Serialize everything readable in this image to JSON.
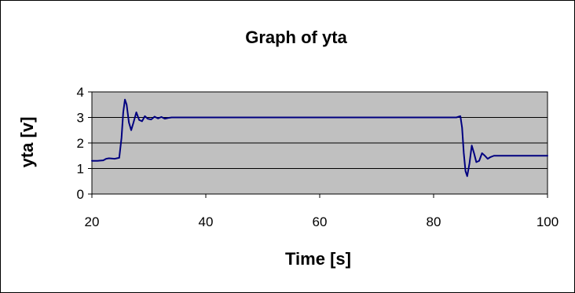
{
  "chart_data": {
    "type": "line",
    "title": "Graph of yta",
    "xlabel": "Time [s]",
    "ylabel": "yta [v]",
    "xlim": [
      20,
      100
    ],
    "ylim": [
      0,
      4
    ],
    "x_ticks": [
      20,
      40,
      60,
      80,
      100
    ],
    "y_ticks": [
      0,
      1,
      2,
      3,
      4
    ],
    "x_tick_labels": [
      "20",
      "40",
      "60",
      "80",
      "100"
    ],
    "y_tick_labels": [
      "0",
      "1",
      "2",
      "3",
      "4"
    ],
    "grid": "horizontal",
    "legend": "none",
    "colors": {
      "plot_background": "#c0c0c0",
      "line": "#000080",
      "grid": "#000000",
      "frame": "#000000"
    },
    "series": [
      {
        "x": [
          20,
          21,
          22,
          22.5,
          23,
          24,
          24.8,
          25.2,
          25.5,
          25.8,
          26.1,
          26.5,
          26.9,
          27.3,
          27.8,
          28.3,
          28.8,
          29.3,
          29.8,
          30.4,
          31,
          31.6,
          32.2,
          32.8,
          33.4,
          34,
          40,
          50,
          60,
          70,
          80,
          84,
          84.7,
          85,
          85.3,
          85.6,
          85.9,
          86.3,
          86.7,
          87.1,
          87.5,
          88,
          88.5,
          89,
          89.5,
          90,
          90.6,
          91.2,
          92,
          95,
          100
        ],
        "y": [
          1.3,
          1.3,
          1.32,
          1.38,
          1.4,
          1.38,
          1.42,
          2.2,
          3.2,
          3.7,
          3.5,
          2.8,
          2.5,
          2.8,
          3.2,
          2.9,
          2.85,
          3.05,
          2.95,
          2.92,
          3.03,
          2.96,
          3.02,
          2.95,
          2.98,
          3.0,
          3.0,
          3.0,
          3.0,
          3.0,
          3.0,
          3.0,
          3.05,
          2.6,
          1.6,
          0.9,
          0.7,
          1.2,
          1.9,
          1.6,
          1.25,
          1.3,
          1.6,
          1.5,
          1.38,
          1.45,
          1.5,
          1.5,
          1.5,
          1.5,
          1.5
        ]
      }
    ]
  }
}
